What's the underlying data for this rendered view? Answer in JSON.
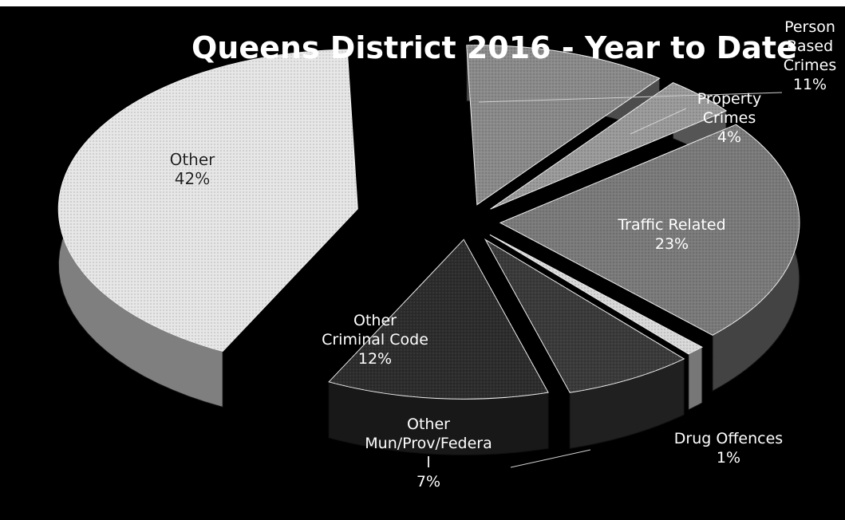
{
  "chart_data": {
    "type": "pie",
    "title": "Queens District 2016 - Year to Date",
    "unit": "%",
    "slices": [
      {
        "name": "Person Based Crimes",
        "label_lines": [
          "Person",
          "Based",
          "Crimes"
        ],
        "value": 11,
        "value_label": "11%",
        "color": "#8a8a8a"
      },
      {
        "name": "Property Crimes",
        "label_lines": [
          "Property",
          "Crimes"
        ],
        "value": 4,
        "value_label": "4%",
        "color": "#9a9a9a"
      },
      {
        "name": "Traffic Related",
        "label_lines": [
          "Traffic Related"
        ],
        "value": 23,
        "value_label": "23%",
        "color": "#7a7a7a"
      },
      {
        "name": "Drug Offences",
        "label_lines": [
          "Drug Offences"
        ],
        "value": 1,
        "value_label": "1%",
        "color": "#d8d8d8"
      },
      {
        "name": "Other Mun/Prov/Federal",
        "label_lines": [
          "Other",
          "Mun/Prov/Federa",
          "l"
        ],
        "value": 7,
        "value_label": "7%",
        "color": "#3a3a3a"
      },
      {
        "name": "Other Criminal Code",
        "label_lines": [
          "Other",
          "Criminal Code"
        ],
        "value": 12,
        "value_label": "12%",
        "color": "#2c2c2c"
      },
      {
        "name": "Other",
        "label_lines": [
          "Other"
        ],
        "value": 42,
        "value_label": "42%",
        "color": "#e6e6e6"
      }
    ],
    "style": "3d-exploded"
  }
}
